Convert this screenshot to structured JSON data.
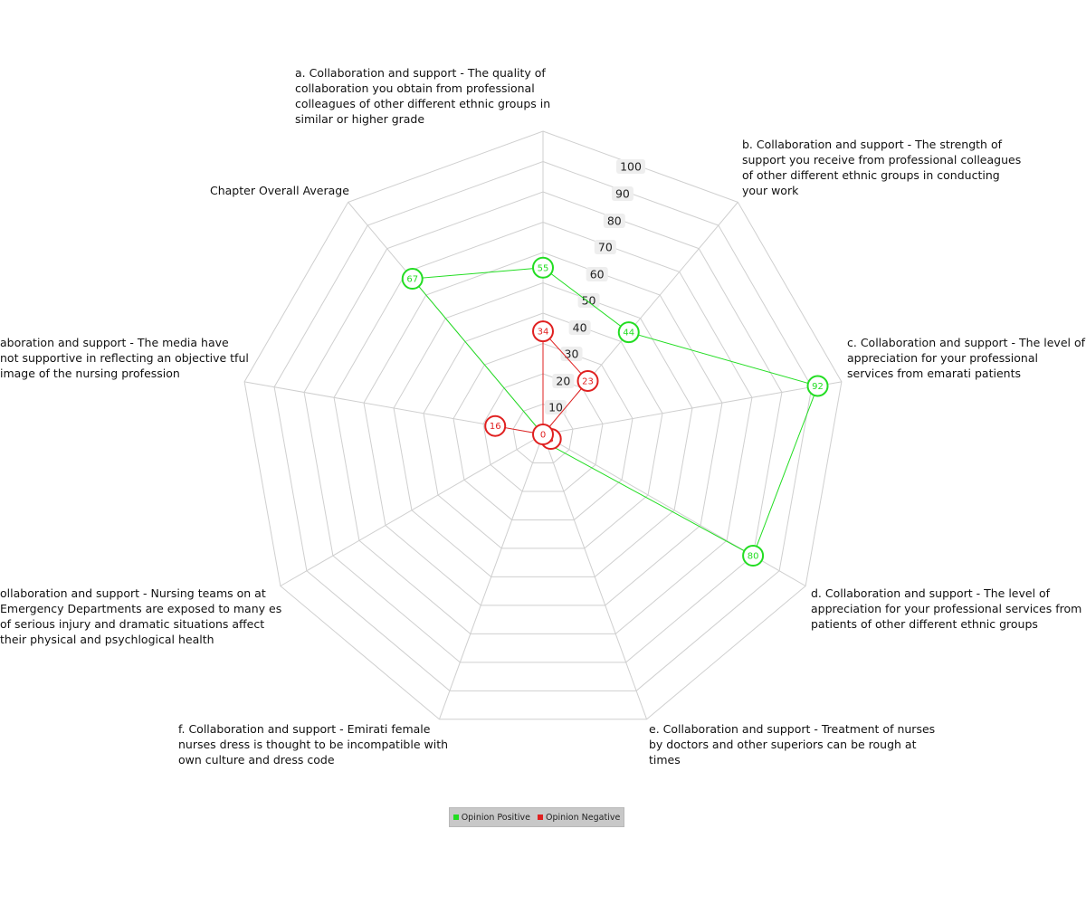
{
  "chart_data": {
    "type": "radar",
    "axes": [
      "a. Collaboration and support - The quality of collaboration you obtain from professional colleagues of other different ethnic groups in similar or higher grade",
      "b. Collaboration and support - The strength of support you receive from professional colleagues of other different ethnic groups in conducting your work",
      "c. Collaboration and support - The level of appreciation for your professional services from emarati patients",
      "d. Collaboration and support - The level of appreciation for your professional services from patients of other different ethnic groups",
      "e. Collaboration and support - Treatment of nurses by doctors and other superiors can be rough at times",
      "f. Collaboration and support - Emirati female nurses dress is thought to be incompatible with own culture and dress code",
      "g. Collaboration and support - Nursing teams on duty at Emergency Departments are exposed to many cases of serious injury and dramatic situations that affect their physical and psychlogical health",
      "h. Collaboration and support - The media have not been supportive in reflecting an objective and respectful image of the nursing profession",
      "Chapter Overall Average"
    ],
    "axis_labels_shown": [
      "a. Collaboration and support - The quality of collaboration you obtain from professional colleagues of other different ethnic groups in similar or higher grade",
      "b. Collaboration and support - The strength of support you receive from professional colleagues of other different ethnic groups in conducting your work",
      "c. Collaboration and support - The level of appreciation for your professional services from emarati patients",
      "d. Collaboration and support - The level of appreciation for your professional services from patients of other different ethnic groups",
      "e. Collaboration and support - Treatment of nurses by doctors and other superiors can be rough at times",
      "f. Collaboration and support - Emirati female nurses dress is thought to be incompatible with own culture and dress code",
      "ollaboration and support - Nursing teams on at Emergency Departments are exposed to many es of serious injury and dramatic situations affect their physical and psychlogical health",
      "aboration and support - The media have not supportive in reflecting an objective tful image of the nursing profession",
      "Chapter Overall Average"
    ],
    "radial_ticks": [
      10,
      20,
      30,
      40,
      50,
      60,
      70,
      80,
      90,
      100
    ],
    "rmax": 100,
    "series": [
      {
        "name": "Opinion Positive",
        "color": "#22dd22",
        "values": [
          55,
          44,
          92,
          80,
          3,
          0,
          0,
          0,
          67
        ]
      },
      {
        "name": "Opinion Negative",
        "color": "#e02020",
        "values": [
          34,
          23,
          0,
          3,
          0,
          0,
          0,
          16,
          0
        ]
      }
    ],
    "point_labels": {
      "Opinion Positive": [
        "55",
        "44",
        "92",
        "80",
        "",
        "",
        "",
        "",
        "67"
      ],
      "Opinion Negative": [
        "34",
        "23",
        "",
        "3",
        "",
        "",
        "0",
        "16",
        ""
      ]
    },
    "legend": "bottom"
  }
}
